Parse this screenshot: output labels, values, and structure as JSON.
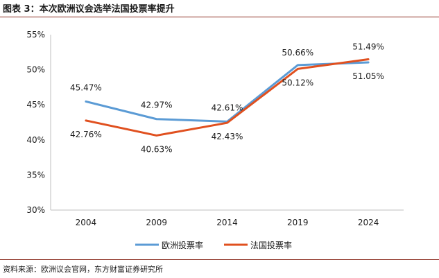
{
  "figure_title": "图表 3：本次欧洲议会选举法国投票率提升",
  "source": "资料来源：欧洲议会官网，东方财富证券研究所",
  "chart_data": {
    "type": "line",
    "categories": [
      "2004",
      "2009",
      "2014",
      "2019",
      "2024"
    ],
    "series": [
      {
        "name": "欧洲投票率",
        "values": [
          45.47,
          42.97,
          42.61,
          50.66,
          51.05
        ],
        "labels": [
          "45.47%",
          "42.97%",
          "42.61%",
          "50.66%",
          "51.05%"
        ],
        "color": "#5b9bd5"
      },
      {
        "name": "法国投票率",
        "values": [
          42.76,
          40.63,
          42.43,
          50.12,
          51.49
        ],
        "labels": [
          "42.76%",
          "40.63%",
          "42.43%",
          "50.12%",
          "51.49%"
        ],
        "color": "#e0501f"
      }
    ],
    "ylim": [
      30,
      55
    ],
    "yticks": [
      "30%",
      "35%",
      "40%",
      "45%",
      "50%",
      "55%"
    ],
    "ytick_values": [
      30,
      35,
      40,
      45,
      50,
      55
    ],
    "legend_position": "bottom"
  }
}
